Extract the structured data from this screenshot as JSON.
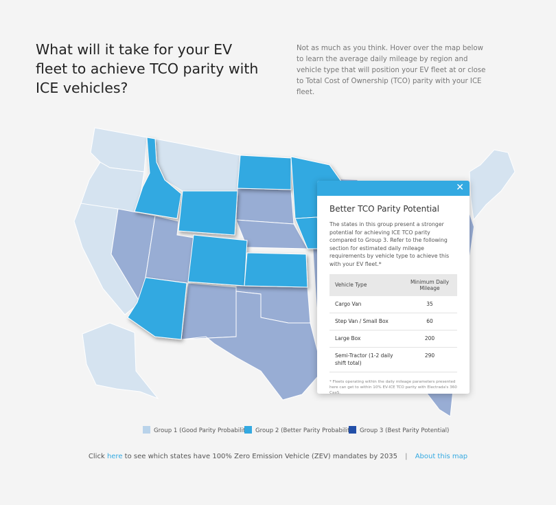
{
  "header": {
    "title": "What will it take for your EV fleet to achieve TCO parity with ICE vehicles?",
    "intro": "Not as much as you think. Hover over the map below to learn the average daily mileage by region and vehicle type that will position your EV fleet at or close to Total Cost of Ownership (TCO) parity with your ICE fleet."
  },
  "colors": {
    "group1": "#d5e3f0",
    "group2": "#33a9e1",
    "group3": "#224fa8",
    "mid": "#98add4",
    "accent": "#33a9e1"
  },
  "map": {
    "states": {
      "WA": 1,
      "OR": 1,
      "CA": 1,
      "ID": 2,
      "MT": 1,
      "WY": 2,
      "NV": 0,
      "UT": 0,
      "AZ": 2,
      "CO": 2,
      "NM": 0,
      "ND": 2,
      "SD": 0,
      "NE": 0,
      "KS": 2,
      "OK": 0,
      "TX": 0,
      "MN": 2,
      "IA": 2,
      "AK": 1,
      "FL": 0,
      "NE_US": 1
    }
  },
  "popup": {
    "title": "Better TCO Parity Potential",
    "description": "The states in this group present a stronger potential for achieving ICE TCO parity compared to Group 3. Refer to the following section for estimated daily mileage requirements by vehicle type to achieve this with your EV fleet.*",
    "table": {
      "headers": [
        "Vehicle Type",
        "Minimum Daily Mileage"
      ],
      "rows": [
        {
          "type": "Cargo Van",
          "mileage": "35"
        },
        {
          "type": "Step Van / Small Box",
          "mileage": "60"
        },
        {
          "type": "Large Box",
          "mileage": "200"
        },
        {
          "type": "Semi-Tractor (1-2 daily shift total)",
          "mileage": "290"
        }
      ]
    },
    "footnote": "* Fleets operating within the daily mileage parameters presented here can get to within 10% EV-ICE TCO parity with Electrada's 360 CaaS."
  },
  "legend": [
    {
      "label": "Group 1 (Good Parity Probability)",
      "color": "#b9d3ea"
    },
    {
      "label": "Group 2 (Better Parity Probability)",
      "color": "#33a9e1"
    },
    {
      "label": "Group 3 (Best Parity Potential)",
      "color": "#224fa8"
    }
  ],
  "footer": {
    "prefix": "Click",
    "link": "here",
    "suffix": "to see which states have 100% Zero Emission Vehicle (ZEV) mandates by 2035",
    "separator": "|",
    "about": "About this map"
  }
}
